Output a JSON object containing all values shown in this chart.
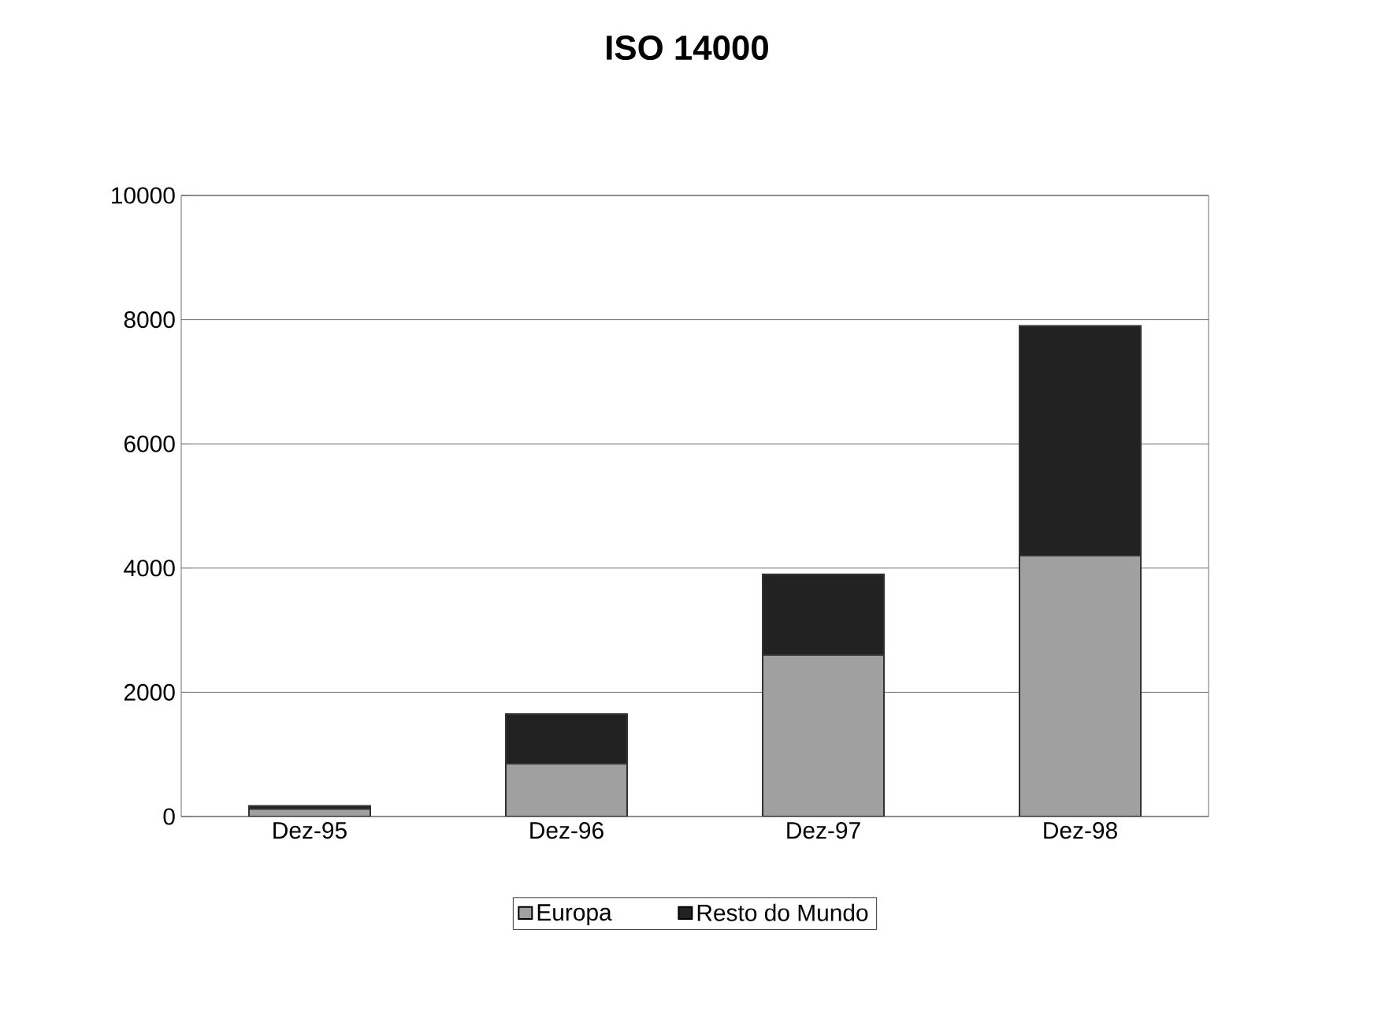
{
  "chart_data": {
    "type": "bar",
    "title": "ISO 14000",
    "stacked": true,
    "categories": [
      "Dez-95",
      "Dez-96",
      "Dez-97",
      "Dez-98"
    ],
    "series": [
      {
        "name": "Europa",
        "color": "#a0a0a0",
        "values": [
          120,
          850,
          2600,
          4200
        ]
      },
      {
        "name": "Resto do Mundo",
        "color": "#222222",
        "values": [
          50,
          800,
          1300,
          3700
        ]
      }
    ],
    "ylim": [
      0,
      10000
    ],
    "yticks": [
      0,
      2000,
      4000,
      6000,
      8000,
      10000
    ],
    "grid": "y",
    "legend": "bottom"
  }
}
